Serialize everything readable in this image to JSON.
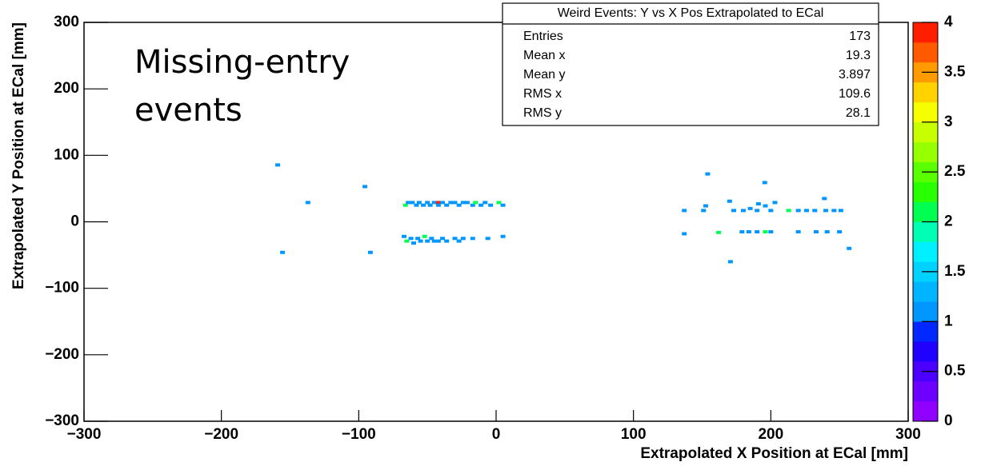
{
  "chart_data": {
    "type": "heatmap",
    "xlabel": "Extrapolated X Position at ECal [mm]",
    "ylabel": "Extrapolated Y Position at ECal [mm]",
    "annotations": [
      "Missing-entry",
      "events"
    ],
    "xlim": [
      -300,
      300
    ],
    "ylim": [
      -300,
      300
    ],
    "zlim": [
      0,
      4
    ],
    "xticks": [
      {
        "value": -300,
        "label": "−300"
      },
      {
        "value": -200,
        "label": "−200"
      },
      {
        "value": -100,
        "label": "−100"
      },
      0,
      100,
      200,
      300
    ],
    "yticks": [
      {
        "value": -300,
        "label": "−300"
      },
      {
        "value": -200,
        "label": "−200"
      },
      {
        "value": -100,
        "label": "−100"
      },
      0,
      100,
      200,
      300
    ],
    "zticks": [
      0,
      0.5,
      1,
      1.5,
      2,
      2.5,
      3,
      3.5,
      4
    ],
    "palette": [
      "#9000ff",
      "#6e00ff",
      "#4b00ff",
      "#2000ff",
      "#0028ff",
      "#0096ff",
      "#00b4ff",
      "#00d2ff",
      "#00f0ff",
      "#00ffb4",
      "#00ff50",
      "#28ff00",
      "#5aff00",
      "#96ff00",
      "#c8ff00",
      "#f5ff00",
      "#ffd200",
      "#ff9b00",
      "#ff5a00",
      "#ff1e00"
    ],
    "x": [
      -159,
      -137,
      -155.5,
      -95.5,
      -91.5,
      154,
      195.6,
      137,
      137,
      170.6,
      257,
      239,
      152.6,
      151,
      -66,
      -64,
      -61,
      -58,
      -56,
      -53,
      -50,
      -48,
      -45,
      -42,
      -42,
      -39,
      -36,
      -33,
      -30,
      -27,
      -24,
      -21,
      -17,
      -15,
      -11,
      -8,
      -4,
      2,
      5,
      -67,
      -65,
      -62,
      -60,
      -57,
      -55,
      -52,
      -50,
      -47,
      -45,
      -42,
      -39,
      -36,
      -30,
      -27,
      -24,
      -17,
      -6,
      5,
      170,
      173,
      180,
      185,
      190,
      191,
      196,
      200,
      203,
      213,
      220,
      226,
      232,
      240,
      246,
      251,
      162,
      179,
      184,
      190,
      196,
      200,
      220,
      233,
      241,
      250
    ],
    "y": [
      85.5,
      29,
      -46,
      53,
      -46,
      72,
      59,
      17,
      -18,
      -60,
      -40,
      35,
      24,
      17,
      25,
      29,
      29,
      25,
      29,
      25,
      29,
      25,
      29,
      29,
      25,
      29,
      25,
      29,
      29,
      25,
      29,
      29,
      25,
      29,
      25,
      29,
      25,
      29,
      25,
      -22,
      -29,
      -25,
      -32,
      -25,
      -29,
      -22,
      -29,
      -25,
      -29,
      -29,
      -25,
      -29,
      -25,
      -29,
      -25,
      -25,
      -25,
      -22,
      31,
      17,
      17,
      20,
      17,
      27,
      24,
      17,
      29,
      17,
      17,
      17,
      17,
      17,
      17,
      17,
      -16,
      -15,
      -15,
      -15,
      -15,
      -15,
      -15,
      -15,
      -15,
      -15
    ],
    "values": [
      1,
      1,
      1,
      1,
      1,
      1,
      1,
      1,
      1,
      1,
      1,
      1,
      1,
      1,
      2,
      1,
      1,
      1,
      1,
      1,
      1,
      1,
      1,
      4,
      1,
      1,
      1,
      1,
      1,
      1,
      1,
      1,
      1,
      2,
      1,
      1,
      1,
      2,
      1,
      1,
      2,
      1,
      1,
      1,
      1,
      2,
      1,
      1,
      1,
      1,
      1,
      1,
      1,
      1,
      1,
      1,
      1,
      1,
      1,
      1,
      1,
      1,
      1,
      1,
      1,
      1,
      1,
      2,
      1,
      1,
      1,
      1,
      1,
      1,
      2,
      1,
      1,
      1,
      2,
      1,
      1,
      1,
      1,
      1
    ]
  },
  "stats": {
    "title": "Weird Events: Y vs X Pos Extrapolated to ECal",
    "rows": [
      [
        "Entries",
        "173"
      ],
      [
        "Mean x",
        "19.3"
      ],
      [
        "Mean y",
        "3.897"
      ],
      [
        "RMS x",
        "109.6"
      ],
      [
        "RMS y",
        "28.1"
      ]
    ]
  }
}
